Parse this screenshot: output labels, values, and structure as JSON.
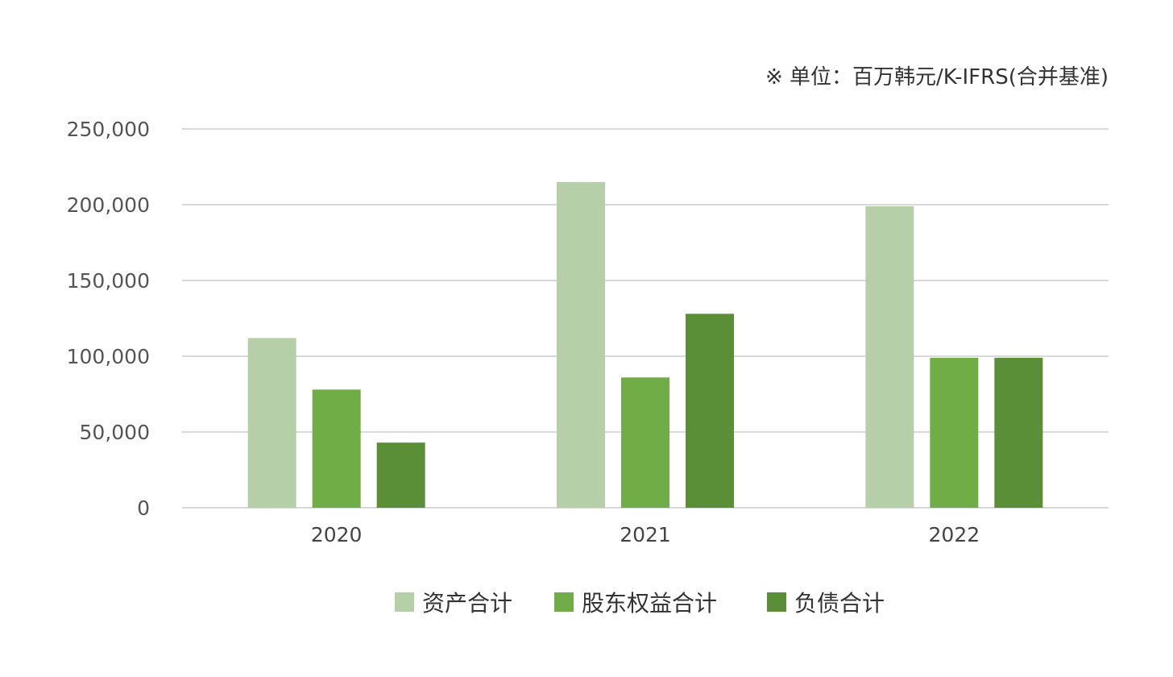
{
  "note": "※ 单位：百万韩元/K-IFRS(合并基准)",
  "chart_data": {
    "type": "bar",
    "categories": [
      "2020",
      "2021",
      "2022"
    ],
    "series": [
      {
        "name": "资产合计",
        "values": [
          112000,
          215000,
          199000
        ],
        "color": "#b5cfa8"
      },
      {
        "name": "股东权益合计",
        "values": [
          78000,
          86000,
          99000
        ],
        "color": "#70ad47"
      },
      {
        "name": "负债合计",
        "values": [
          43000,
          128000,
          99000
        ],
        "color": "#5a8f38"
      }
    ],
    "ylim": [
      0,
      250000
    ],
    "yticks": [
      0,
      50000,
      100000,
      150000,
      200000,
      250000
    ],
    "ytick_labels": [
      "0",
      "50,000",
      "100,000",
      "150,000",
      "200,000",
      "250,000"
    ],
    "grid": true,
    "gridline_color": "#d9d9d9",
    "legend_position": "bottom"
  }
}
